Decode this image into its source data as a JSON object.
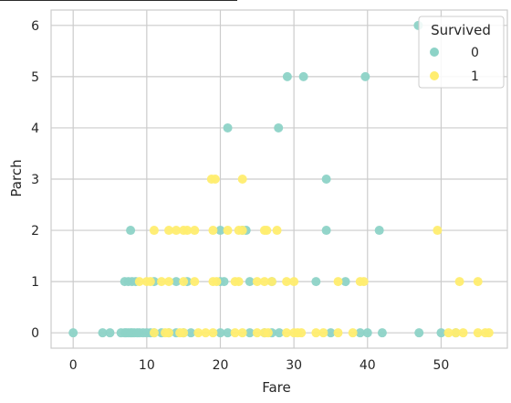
{
  "chart_data": {
    "type": "scatter",
    "xlabel": "Fare",
    "ylabel": "Parch",
    "xlim": [
      -3,
      59
    ],
    "ylim": [
      -0.3,
      6.3
    ],
    "xticks": [
      "0",
      "10",
      "20",
      "30",
      "40",
      "50"
    ],
    "yticks": [
      "0",
      "1",
      "2",
      "3",
      "4",
      "5",
      "6"
    ],
    "grid": true,
    "legend": {
      "title": "Survived",
      "placement": "top-right"
    },
    "series": [
      {
        "name": "0",
        "color": "#8dd3c7",
        "points": [
          [
            0,
            0
          ],
          [
            4,
            0
          ],
          [
            5,
            0
          ],
          [
            6.5,
            0
          ],
          [
            7,
            0
          ],
          [
            7.2,
            0
          ],
          [
            7.5,
            0
          ],
          [
            7.8,
            0
          ],
          [
            8,
            0
          ],
          [
            8.3,
            0
          ],
          [
            8.7,
            0
          ],
          [
            9,
            0
          ],
          [
            9.5,
            0
          ],
          [
            10,
            0
          ],
          [
            10.5,
            0
          ],
          [
            11,
            0
          ],
          [
            12,
            0
          ],
          [
            13,
            0
          ],
          [
            14,
            0
          ],
          [
            15,
            0
          ],
          [
            16,
            0
          ],
          [
            20,
            0
          ],
          [
            21,
            0
          ],
          [
            24,
            0
          ],
          [
            26,
            0
          ],
          [
            27,
            0
          ],
          [
            28,
            0
          ],
          [
            35,
            0
          ],
          [
            39,
            0
          ],
          [
            40,
            0
          ],
          [
            42,
            0
          ],
          [
            47,
            0
          ],
          [
            50,
            0
          ],
          [
            52,
            0
          ],
          [
            7,
            1
          ],
          [
            7.5,
            1
          ],
          [
            8,
            1
          ],
          [
            8.5,
            1
          ],
          [
            11,
            1
          ],
          [
            14,
            1
          ],
          [
            15.5,
            1
          ],
          [
            20,
            1
          ],
          [
            20.5,
            1
          ],
          [
            24,
            1
          ],
          [
            27,
            1
          ],
          [
            33,
            1
          ],
          [
            37,
            1
          ],
          [
            7.8,
            2
          ],
          [
            20,
            2
          ],
          [
            23,
            2
          ],
          [
            23.5,
            2
          ],
          [
            34.4,
            2
          ],
          [
            41.6,
            2
          ],
          [
            34.4,
            3
          ],
          [
            21,
            4
          ],
          [
            27.9,
            4
          ],
          [
            29.1,
            5
          ],
          [
            31.3,
            5
          ],
          [
            39.7,
            5
          ],
          [
            46.9,
            6
          ]
        ]
      },
      {
        "name": "1",
        "color": "#ffed6f",
        "points": [
          [
            11,
            0
          ],
          [
            12.5,
            0
          ],
          [
            13,
            0
          ],
          [
            14.5,
            0
          ],
          [
            15,
            0
          ],
          [
            17,
            0
          ],
          [
            18,
            0
          ],
          [
            19,
            0
          ],
          [
            22,
            0
          ],
          [
            23,
            0
          ],
          [
            25,
            0
          ],
          [
            26,
            0
          ],
          [
            26.5,
            0
          ],
          [
            29,
            0
          ],
          [
            30,
            0
          ],
          [
            30.5,
            0
          ],
          [
            31,
            0
          ],
          [
            33,
            0
          ],
          [
            34,
            0
          ],
          [
            36,
            0
          ],
          [
            38,
            0
          ],
          [
            51,
            0
          ],
          [
            52,
            0
          ],
          [
            53,
            0
          ],
          [
            55,
            0
          ],
          [
            56,
            0
          ],
          [
            56.5,
            0
          ],
          [
            9,
            1
          ],
          [
            10,
            1
          ],
          [
            10.5,
            1
          ],
          [
            12,
            1
          ],
          [
            13,
            1
          ],
          [
            15,
            1
          ],
          [
            16.5,
            1
          ],
          [
            19,
            1
          ],
          [
            19.5,
            1
          ],
          [
            22,
            1
          ],
          [
            22.5,
            1
          ],
          [
            25,
            1
          ],
          [
            26,
            1
          ],
          [
            27,
            1
          ],
          [
            29,
            1
          ],
          [
            30,
            1
          ],
          [
            36,
            1
          ],
          [
            39,
            1
          ],
          [
            39.5,
            1
          ],
          [
            52.5,
            1
          ],
          [
            55,
            1
          ],
          [
            11,
            2
          ],
          [
            13,
            2
          ],
          [
            14,
            2
          ],
          [
            15,
            2
          ],
          [
            15.5,
            2
          ],
          [
            16.5,
            2
          ],
          [
            19,
            2
          ],
          [
            21,
            2
          ],
          [
            22.5,
            2
          ],
          [
            23,
            2
          ],
          [
            26,
            2
          ],
          [
            26.3,
            2
          ],
          [
            27.7,
            2
          ],
          [
            49.5,
            2
          ],
          [
            18.8,
            3
          ],
          [
            19.3,
            3
          ],
          [
            23,
            3
          ]
        ]
      }
    ]
  }
}
